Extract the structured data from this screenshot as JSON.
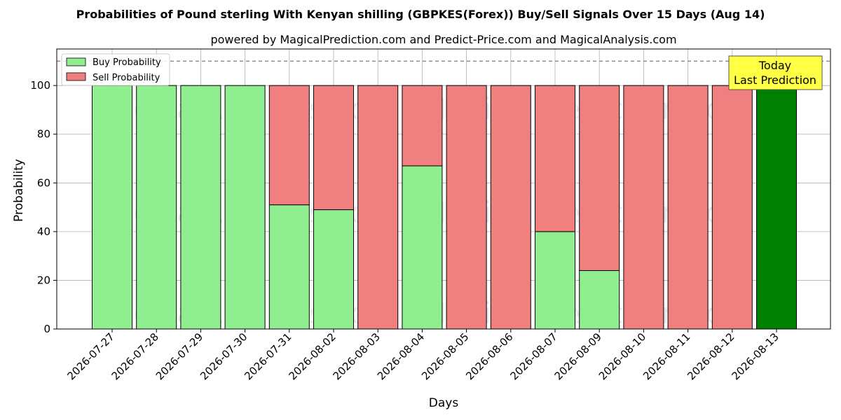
{
  "title": "Probabilities of Pound sterling With Kenyan shilling (GBPKES(Forex)) Buy/Sell Signals Over 15 Days (Aug 14)",
  "subtitle": "powered by MagicalPrediction.com and Predict-Price.com and MagicalAnalysis.com",
  "watermarks": [
    "MagicalAnalysis.com",
    "MagicalPrediction.com"
  ],
  "colors": {
    "buy": "#90ee90",
    "sell": "#f08080",
    "today": "#008000",
    "today_box": "#ffff44",
    "grid": "#b0b0b0"
  },
  "today_box": {
    "line1": "Today",
    "line2": "Last Prediction"
  },
  "chart_data": {
    "type": "bar",
    "stacked": true,
    "xlabel": "Days",
    "ylabel": "Probability",
    "ylim": [
      0,
      115
    ],
    "yticks": [
      0,
      20,
      40,
      60,
      80,
      100
    ],
    "reference_line": 110,
    "grid": true,
    "legend_position": "top-left",
    "categories": [
      "2026-07-27",
      "2026-07-28",
      "2026-07-29",
      "2026-07-30",
      "2026-07-31",
      "2026-08-02",
      "2026-08-03",
      "2026-08-04",
      "2026-08-05",
      "2026-08-06",
      "2026-08-07",
      "2026-08-09",
      "2026-08-10",
      "2026-08-11",
      "2026-08-12",
      "2026-08-13"
    ],
    "series": [
      {
        "name": "Buy Probability",
        "values": [
          100,
          100,
          100,
          100,
          51,
          49,
          0,
          67,
          0,
          0,
          40,
          24,
          0,
          0,
          0,
          100
        ]
      },
      {
        "name": "Sell Probability",
        "values": [
          0,
          0,
          0,
          0,
          49,
          51,
          100,
          33,
          100,
          100,
          60,
          76,
          100,
          100,
          100,
          0
        ]
      }
    ]
  }
}
